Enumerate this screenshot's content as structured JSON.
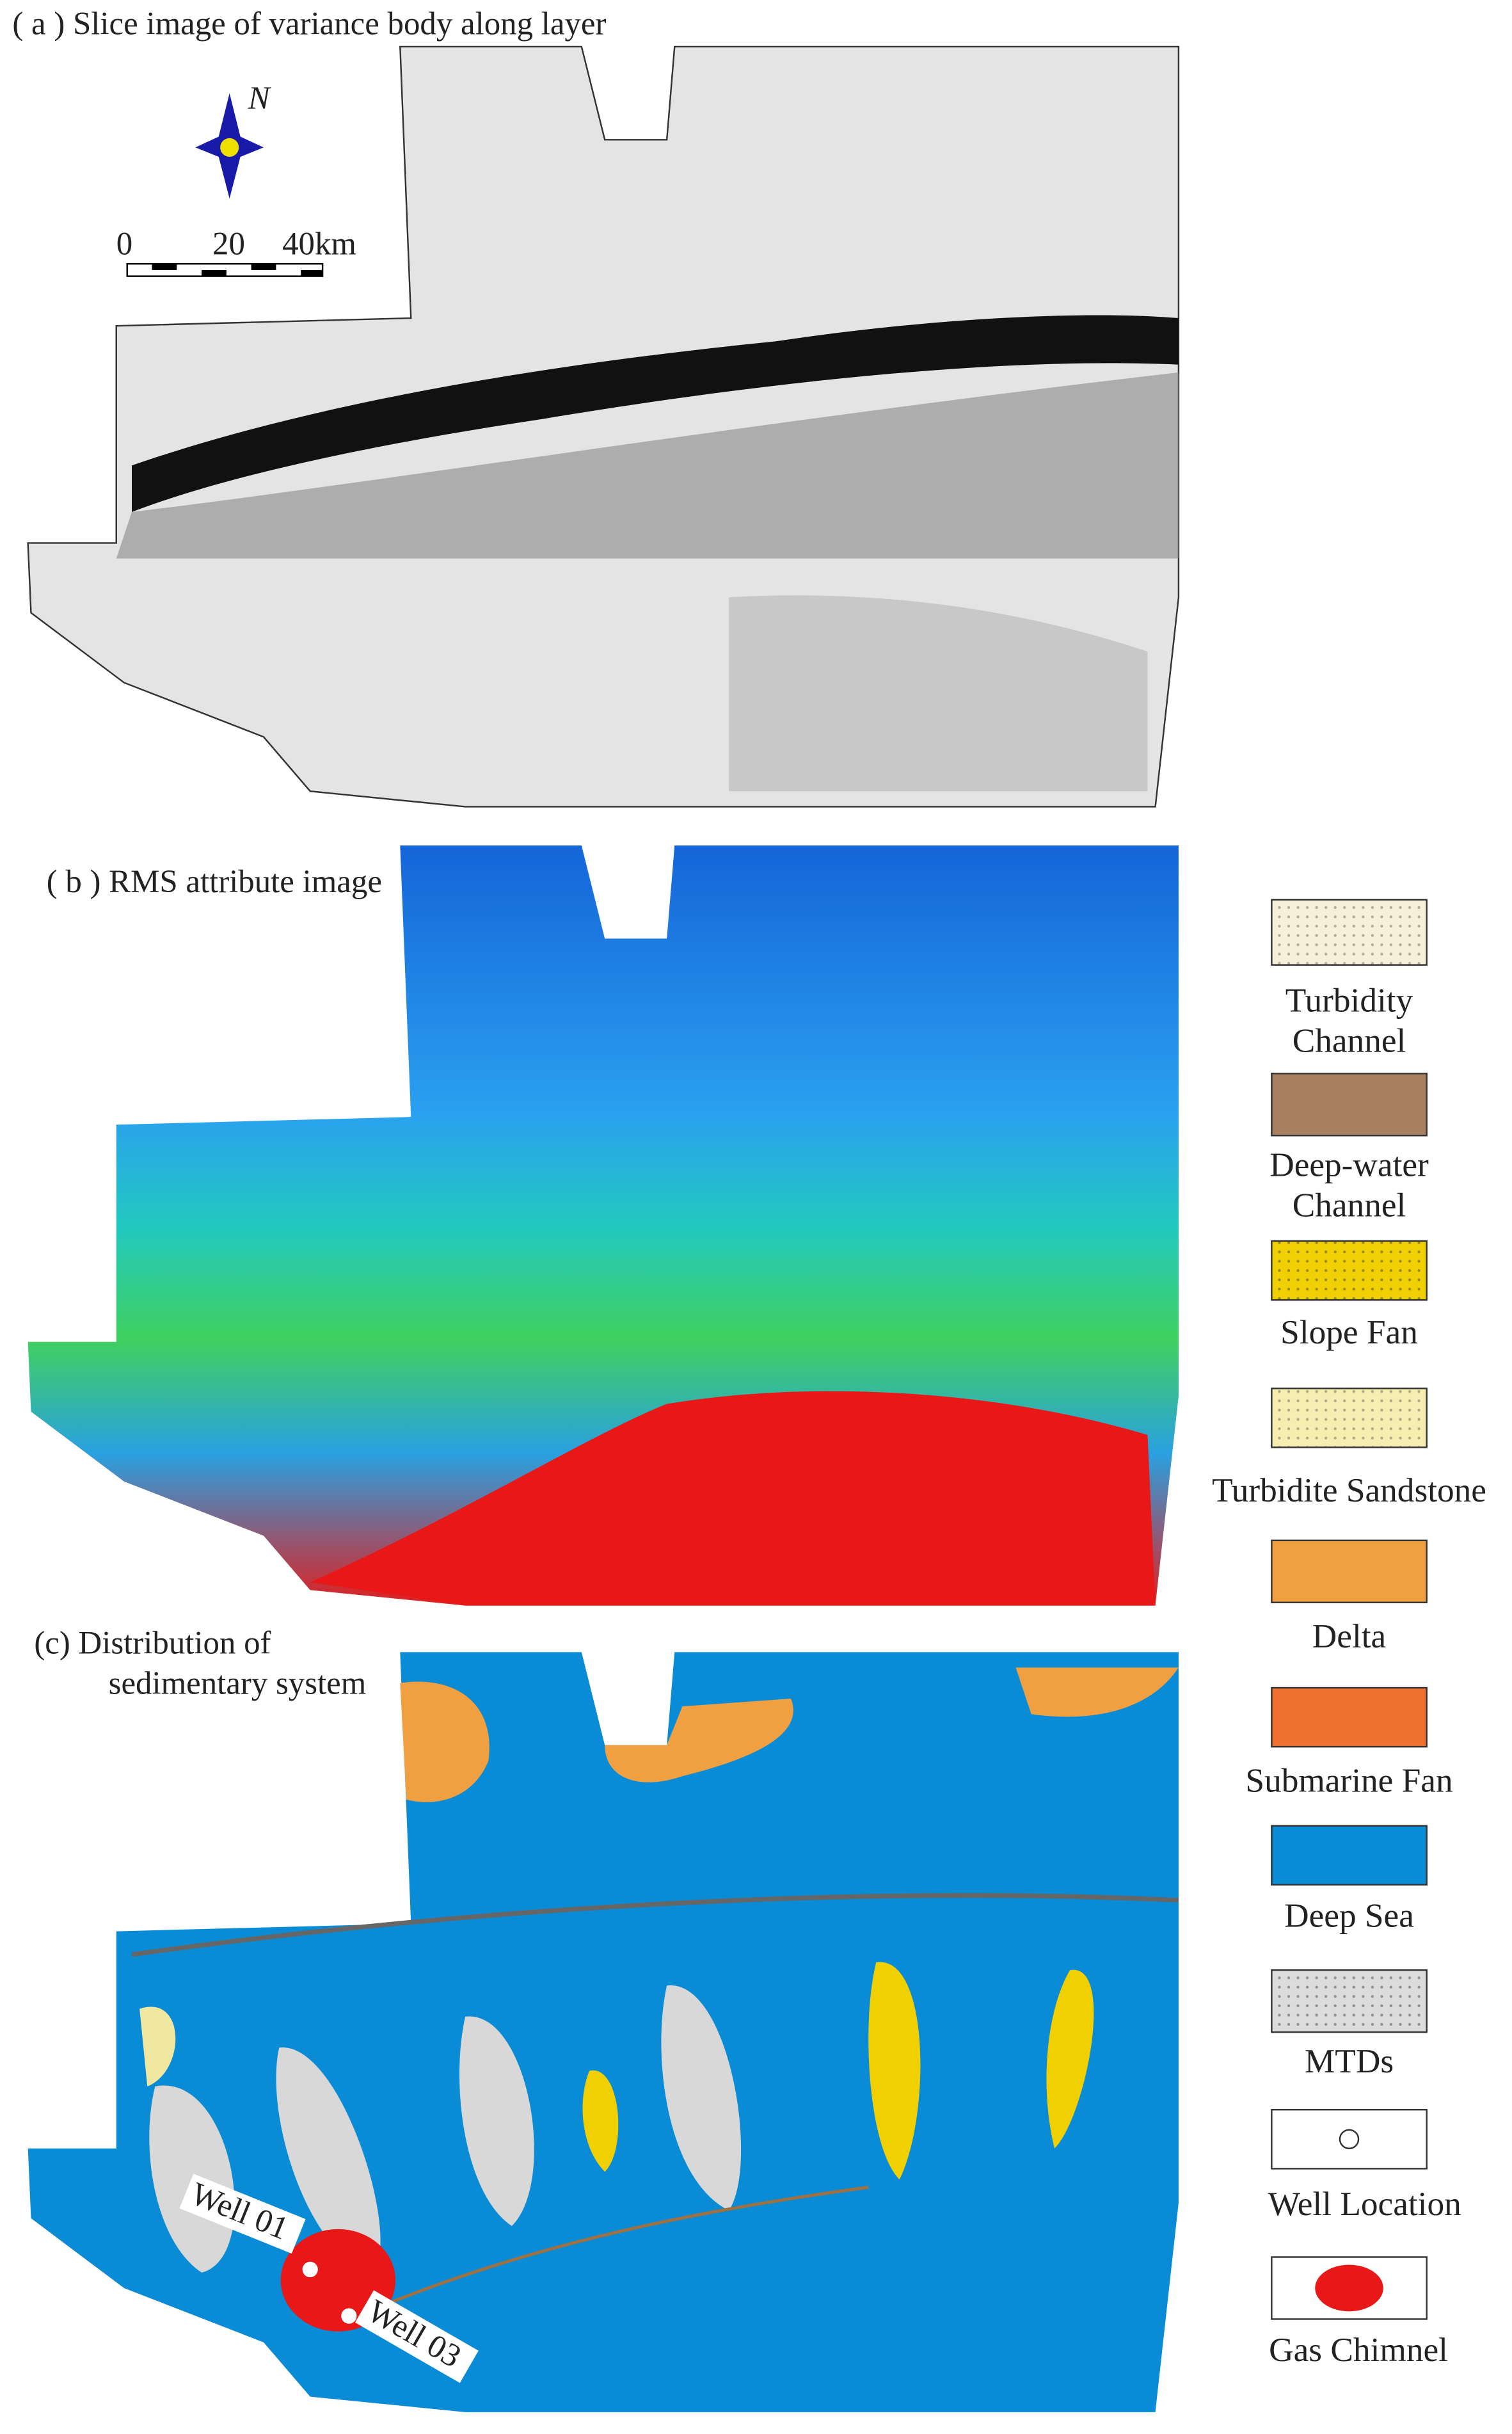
{
  "panels": [
    {
      "title": "( a )  Slice image of variance body along layer"
    },
    {
      "title": "( b )  RMS attribute image"
    },
    {
      "title_lines": [
        "(c)  Distribution of",
        "sedimentary system"
      ]
    }
  ],
  "north": "N",
  "scale_bar": [
    "0",
    "20",
    "40km"
  ],
  "wells": [
    "Well 01",
    "Well 03"
  ],
  "legend": [
    {
      "lines": [
        "Turbidity",
        "Channel"
      ]
    },
    {
      "lines": [
        "Deep-water",
        "Channel"
      ]
    },
    {
      "lines": [
        "Slope Fan"
      ]
    },
    {
      "lines": [
        "Turbidite Sandstone"
      ]
    },
    {
      "lines": [
        "Delta"
      ]
    },
    {
      "lines": [
        "Submarine Fan"
      ]
    },
    {
      "lines": [
        "Deep  Sea"
      ]
    },
    {
      "lines": [
        "MTDs"
      ]
    },
    {
      "lines": [
        "Well Location"
      ]
    },
    {
      "lines": [
        "Gas Chimnel"
      ]
    }
  ]
}
